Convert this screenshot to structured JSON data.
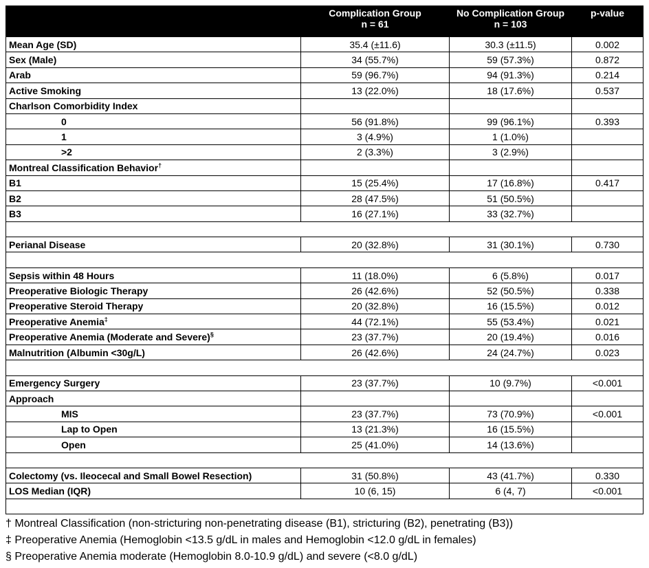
{
  "table": {
    "header": {
      "label": "",
      "columns": [
        {
          "title": "Complication Group",
          "n": "n = 61"
        },
        {
          "title": "No Complication Group",
          "n": "n = 103"
        },
        {
          "title": "p-value"
        }
      ]
    },
    "sections": [
      {
        "rows": [
          {
            "label": "Mean Age (SD)",
            "complication": "35.4 (±11.6)",
            "no_complication": "30.3 (±11.5)",
            "p_value": "0.002"
          },
          {
            "label": "Sex (Male)",
            "complication": "34 (55.7%)",
            "no_complication": "59 (57.3%)",
            "p_value": "0.872"
          },
          {
            "label": "Arab",
            "complication": "59 (96.7%)",
            "no_complication": "94 (91.3%)",
            "p_value": "0.214"
          },
          {
            "label": "Active Smoking",
            "complication": "13 (22.0%)",
            "no_complication": "18 (17.6%)",
            "p_value": "0.537"
          },
          {
            "label": "Charlson Comorbidity Index",
            "items": [
              {
                "label": "0",
                "complication": "56 (91.8%)",
                "no_complication": "99 (96.1%)",
                "p_value": "0.393"
              },
              {
                "label": "1",
                "complication": "3 (4.9%)",
                "no_complication": "1 (1.0%)"
              },
              {
                "label": ">2",
                "complication": "2 (3.3%)",
                "no_complication": "3 (2.9%)"
              }
            ]
          },
          {
            "label": "Montreal Classification Behavior",
            "sup": "†"
          },
          {
            "label": "B1",
            "complication": "15 (25.4%)",
            "no_complication": "17 (16.8%)",
            "p_value": "0.417"
          },
          {
            "label": "B2",
            "complication": "28 (47.5%)",
            "no_complication": "51 (50.5%)"
          },
          {
            "label": "B3",
            "complication": "16 (27.1%)",
            "no_complication": "33 (32.7%)"
          }
        ]
      },
      {
        "rows": [
          {
            "label": "Perianal Disease",
            "complication": "20 (32.8%)",
            "no_complication": "31 (30.1%)",
            "p_value": "0.730"
          }
        ]
      },
      {
        "rows": [
          {
            "label": "Sepsis within 48 Hours",
            "complication": "11 (18.0%)",
            "no_complication": "6 (5.8%)",
            "p_value": "0.017"
          },
          {
            "label": "Preoperative Biologic Therapy",
            "complication": "26 (42.6%)",
            "no_complication": "52 (50.5%)",
            "p_value": "0.338"
          },
          {
            "label": "Preoperative Steroid Therapy",
            "complication": "20 (32.8%)",
            "no_complication": "16 (15.5%)",
            "p_value": "0.012"
          },
          {
            "label": "Preoperative Anemia",
            "sup": "‡",
            "complication": "44 (72.1%)",
            "no_complication": "55 (53.4%)",
            "p_value": "0.021"
          },
          {
            "label": "Preoperative Anemia (Moderate and Severe)",
            "sup": "§",
            "complication": "23 (37.7%)",
            "no_complication": "20 (19.4%)",
            "p_value": "0.016"
          },
          {
            "label": "Malnutrition (Albumin <30g/L)",
            "complication": "26 (42.6%)",
            "no_complication": "24 (24.7%)",
            "p_value": "0.023"
          }
        ]
      },
      {
        "rows": [
          {
            "label": "Emergency Surgery",
            "complication": "23 (37.7%)",
            "no_complication": "10 (9.7%)",
            "p_value": "<0.001"
          },
          {
            "label": "Approach",
            "items": [
              {
                "label": "MIS",
                "complication": "23 (37.7%)",
                "no_complication": "73 (70.9%)",
                "p_value": "<0.001"
              },
              {
                "label": "Lap to Open",
                "complication": "13 (21.3%)",
                "no_complication": "16 (15.5%)"
              },
              {
                "label": "Open",
                "complication": "25 (41.0%)",
                "no_complication": "14 (13.6%)"
              }
            ]
          }
        ]
      },
      {
        "rows": [
          {
            "label": "Colectomy (vs. Ileocecal and Small Bowel Resection)",
            "complication": "31 (50.8%)",
            "no_complication": "43 (41.7%)",
            "p_value": "0.330"
          },
          {
            "label": "LOS Median (IQR)",
            "complication": "10 (6, 15)",
            "no_complication": "6 (4, 7)",
            "p_value": "<0.001"
          }
        ]
      }
    ],
    "footnotes": [
      "† Montreal Classification (non-stricturing non-penetrating disease (B1), stricturing (B2), penetrating (B3))",
      "‡ Preoperative Anemia (Hemoglobin <13.5 g/dL in males and Hemoglobin <12.0 g/dL in females)",
      "§ Preoperative Anemia moderate (Hemoglobin 8.0-10.9 g/dL) and severe (<8.0 g/dL)"
    ]
  }
}
